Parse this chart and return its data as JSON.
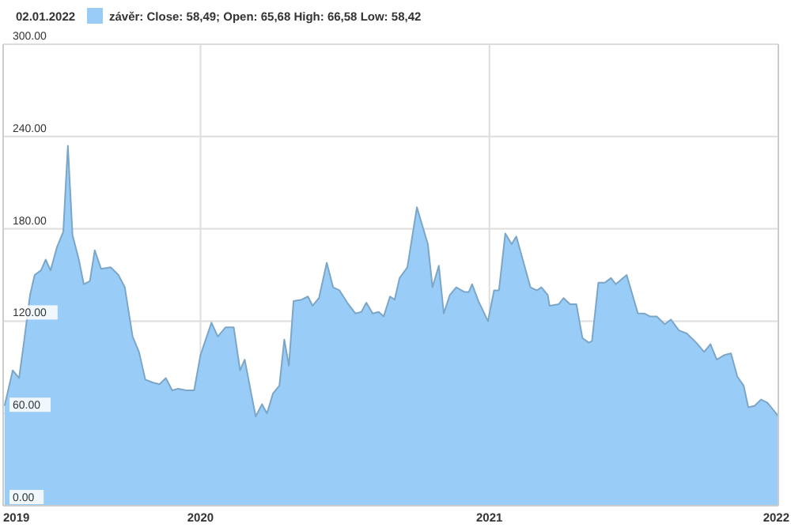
{
  "chart_data": {
    "type": "area",
    "subtitle": "02.01.2022",
    "x": [
      2019.322,
      2019.35,
      2019.372,
      2019.388,
      2019.41,
      2019.426,
      2019.448,
      2019.464,
      2019.481,
      2019.503,
      2019.525,
      2019.541,
      2019.557,
      2019.579,
      2019.596,
      2019.617,
      2019.634,
      2019.656,
      2019.689,
      2019.716,
      2019.738,
      2019.765,
      2019.787,
      2019.809,
      2019.836,
      2019.858,
      2019.88,
      2019.902,
      2019.923,
      2019.951,
      2019.978,
      2020.0,
      2020.038,
      2020.06,
      2020.087,
      2020.115,
      2020.137,
      2020.153,
      2020.191,
      2020.213,
      2020.23,
      2020.251,
      2020.273,
      2020.29,
      2020.306,
      2020.322,
      2020.35,
      2020.372,
      2020.388,
      2020.41,
      2020.437,
      2020.459,
      2020.481,
      2020.508,
      2020.536,
      2020.557,
      2020.574,
      2020.596,
      2020.617,
      2020.634,
      2020.656,
      2020.672,
      2020.689,
      2020.716,
      2020.749,
      2020.787,
      2020.803,
      2020.825,
      2020.842,
      2020.863,
      2020.885,
      2020.913,
      2020.929,
      2020.94,
      2020.962,
      2020.995,
      2021.016,
      2021.033,
      2021.055,
      2021.077,
      2021.093,
      2021.142,
      2021.164,
      2021.18,
      2021.202,
      2021.208,
      2021.24,
      2021.257,
      2021.279,
      2021.301,
      2021.322,
      2021.344,
      2021.355,
      2021.377,
      2021.399,
      2021.421,
      2021.437,
      2021.475,
      2021.514,
      2021.536,
      2021.557,
      2021.579,
      2021.607,
      2021.628,
      2021.656,
      2021.683,
      2021.716,
      2021.743,
      2021.765,
      2021.787,
      2021.814,
      2021.836,
      2021.858,
      2021.88,
      2021.896,
      2021.918,
      2021.94,
      2021.962,
      2021.984,
      2022.0
    ],
    "series": [
      {
        "name": "závěr: Close: 58,49; Open: 65,68 High: 66,58 Low: 58,42",
        "color": "#99cdf7",
        "values": [
          65,
          88,
          83,
          105,
          137,
          150,
          153,
          160,
          153,
          168,
          178,
          234,
          176,
          160,
          144,
          146,
          166,
          154,
          155,
          150,
          142,
          110,
          100,
          82,
          80,
          79,
          83,
          75,
          76,
          75,
          75,
          98,
          119,
          110,
          116,
          116,
          88,
          95,
          58,
          66,
          60,
          73,
          78,
          108,
          91,
          133,
          134,
          136,
          130,
          135,
          158,
          142,
          140,
          132,
          125,
          126,
          132,
          125,
          126,
          123,
          136,
          134,
          148,
          155,
          194,
          170,
          142,
          156,
          125,
          137,
          142,
          139,
          139,
          144,
          133,
          120,
          140,
          140,
          177,
          170,
          175,
          142,
          140,
          142,
          137,
          130,
          131,
          135,
          131,
          131,
          109,
          106,
          107,
          145,
          145,
          148,
          144,
          150,
          125,
          125,
          123,
          123,
          118,
          121,
          114,
          112,
          106,
          100,
          105,
          95,
          98,
          99,
          84,
          78,
          64,
          65,
          69,
          67,
          62,
          58
        ]
      }
    ],
    "xlim": [
      2019.317,
      2022.0
    ],
    "xticks": [
      {
        "value": 2019.317,
        "label": "2019"
      },
      2020,
      2021,
      2022
    ],
    "ylim": [
      0,
      300
    ],
    "yticks": [
      {
        "value": 0,
        "label": "0.00"
      },
      {
        "value": 60,
        "label": "60.00"
      },
      {
        "value": 120,
        "label": "120.00"
      },
      {
        "value": 180,
        "label": "180.00"
      },
      {
        "value": 240,
        "label": "240.00"
      },
      {
        "value": 300,
        "label": "300.00"
      }
    ],
    "grid": true,
    "legend": "top left",
    "tick_labels": true
  }
}
